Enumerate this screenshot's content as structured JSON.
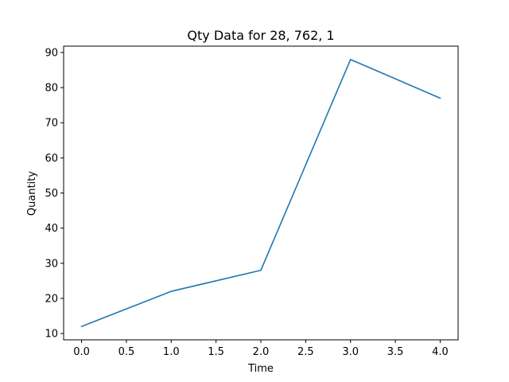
{
  "chart_data": {
    "type": "line",
    "title": "Qty Data for 28, 762, 1",
    "xlabel": "Time",
    "ylabel": "Quantity",
    "x": [
      0,
      1,
      2,
      3,
      4
    ],
    "series": [
      {
        "values": [
          12,
          22,
          28,
          88,
          77
        ],
        "color": "#1f77b4"
      }
    ],
    "xlim": [
      -0.2,
      4.2
    ],
    "ylim": [
      8.2,
      91.8
    ],
    "xticks": [
      0.0,
      0.5,
      1.0,
      1.5,
      2.0,
      2.5,
      3.0,
      3.5,
      4.0
    ],
    "xtick_labels": [
      "0.0",
      "0.5",
      "1.0",
      "1.5",
      "2.0",
      "2.5",
      "3.0",
      "3.5",
      "4.0"
    ],
    "yticks": [
      10,
      20,
      30,
      40,
      50,
      60,
      70,
      80,
      90
    ],
    "ytick_labels": [
      "10",
      "20",
      "30",
      "40",
      "50",
      "60",
      "70",
      "80",
      "90"
    ],
    "grid": false,
    "legend": "none"
  }
}
